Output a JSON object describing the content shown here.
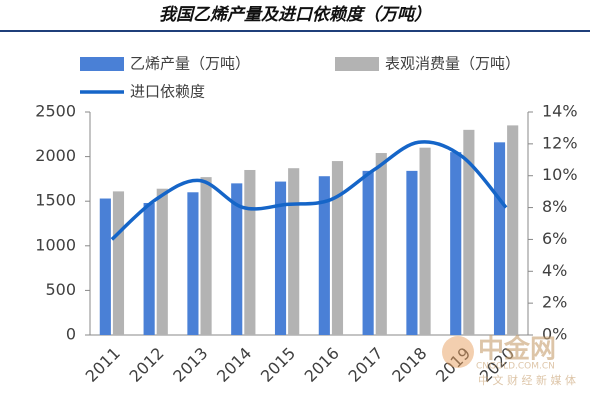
{
  "chart_data": {
    "type": "bar-line",
    "title": "我国乙烯产量及进口依赖度（万吨）",
    "categories": [
      "2011",
      "2012",
      "2013",
      "2014",
      "2015",
      "2016",
      "2017",
      "2018",
      "2019",
      "2020"
    ],
    "series": [
      {
        "name": "乙烯产量（万吨）",
        "type": "bar",
        "color": "#4a80d6",
        "values": [
          1530,
          1480,
          1600,
          1700,
          1720,
          1780,
          1840,
          1840,
          2050,
          2160
        ]
      },
      {
        "name": "表观消费量（万吨）",
        "type": "bar",
        "color": "#b3b3b3",
        "values": [
          1610,
          1640,
          1770,
          1850,
          1870,
          1950,
          2040,
          2100,
          2300,
          2350
        ]
      },
      {
        "name": "进口依赖度",
        "type": "line",
        "axis": "y2",
        "color": "#1565c8",
        "values": [
          6.0,
          8.5,
          9.7,
          8.0,
          8.2,
          8.5,
          10.4,
          12.1,
          11.2,
          8.0
        ]
      }
    ],
    "ylim": [
      0,
      2500
    ],
    "yticks": [
      0,
      500,
      1000,
      1500,
      2000,
      2500
    ],
    "y2lim": [
      0,
      14
    ],
    "y2ticks": [
      {
        "value": 0,
        "label": "0%"
      },
      {
        "value": 2,
        "label": "2%"
      },
      {
        "value": 4,
        "label": "4%"
      },
      {
        "value": 6,
        "label": "6%"
      },
      {
        "value": 8,
        "label": "8%"
      },
      {
        "value": 10,
        "label": "10%"
      },
      {
        "value": 12,
        "label": "12%"
      },
      {
        "value": 14,
        "label": "14%"
      }
    ],
    "watermark": [
      "中金网",
      "CNGOLD.COM.CN",
      "中 文 财 经 新 媒 体"
    ]
  }
}
